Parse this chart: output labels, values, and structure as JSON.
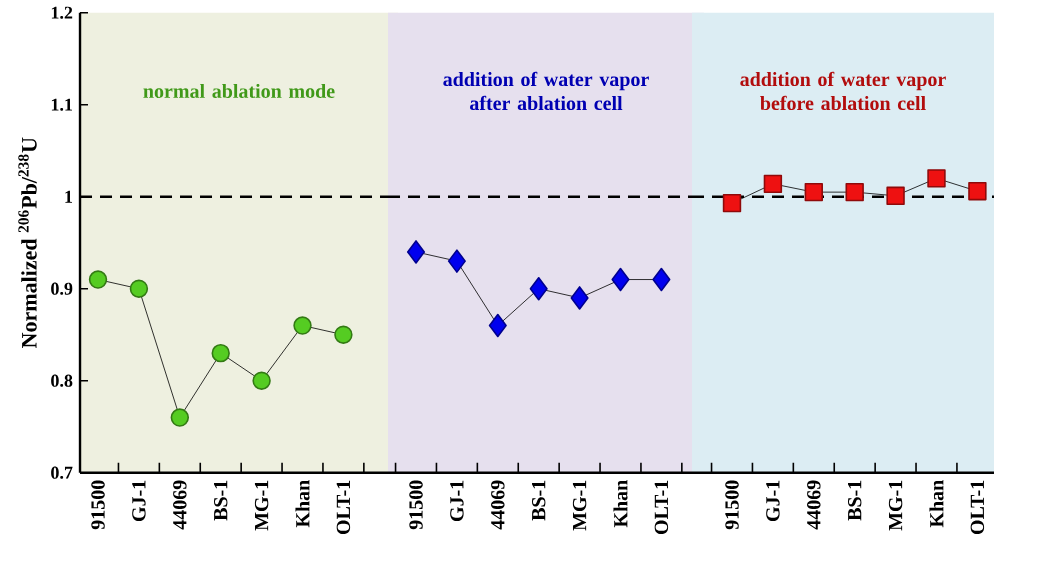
{
  "chart_data": [
    {
      "type": "line",
      "title": "normal ablation mode",
      "ylabel": "Normalized $^{206}$Pb/$^{238}$U",
      "categories": [
        "91500",
        "GJ-1",
        "44069",
        "BS-1",
        "MG-1",
        "Khan",
        "OLT-1"
      ],
      "series": [
        {
          "color": "#55cc22",
          "marker": "circle",
          "values": [
            0.91,
            0.9,
            0.76,
            0.83,
            0.8,
            0.86,
            0.85
          ]
        }
      ],
      "ylim": [
        0.7,
        1.2
      ],
      "yticks": [
        0.7,
        0.8,
        0.9,
        1,
        1.1,
        1.2
      ],
      "ref_lines": [
        {
          "axis": "y",
          "value": 1,
          "color": "#000000",
          "line_style": "dashed"
        }
      ],
      "line_style": "solid"
    },
    {
      "type": "line",
      "title": "addition of water vapor after ablation cell",
      "categories": [
        "91500",
        "GJ-1",
        "44069",
        "BS-1",
        "MG-1",
        "Khan",
        "OLT-1"
      ],
      "series": [
        {
          "color": "#0000ee",
          "marker": "diamond",
          "values": [
            0.94,
            0.93,
            0.86,
            0.9,
            0.89,
            0.91,
            0.91
          ]
        }
      ],
      "ylim": [
        0.7,
        1.2
      ],
      "tick_labels": "x",
      "ref_lines": [
        {
          "axis": "y",
          "value": 1,
          "color": "#000000",
          "line_style": "dashed"
        }
      ],
      "line_style": "solid"
    },
    {
      "type": "line",
      "title": "addition of water vapor before ablation cell",
      "categories": [
        "91500",
        "GJ-1",
        "44069",
        "BS-1",
        "MG-1",
        "Khan",
        "OLT-1"
      ],
      "series": [
        {
          "color": "#ee1111",
          "marker": "square",
          "values": [
            0.993,
            1.014,
            1.005,
            1.005,
            1.001,
            1.02,
            1.006
          ]
        }
      ],
      "ylim": [
        0.7,
        1.2
      ],
      "tick_labels": "x",
      "ref_lines": [
        {
          "axis": "y",
          "value": 1,
          "color": "#000000",
          "line_style": "dashed"
        }
      ],
      "line_style": "solid"
    }
  ]
}
